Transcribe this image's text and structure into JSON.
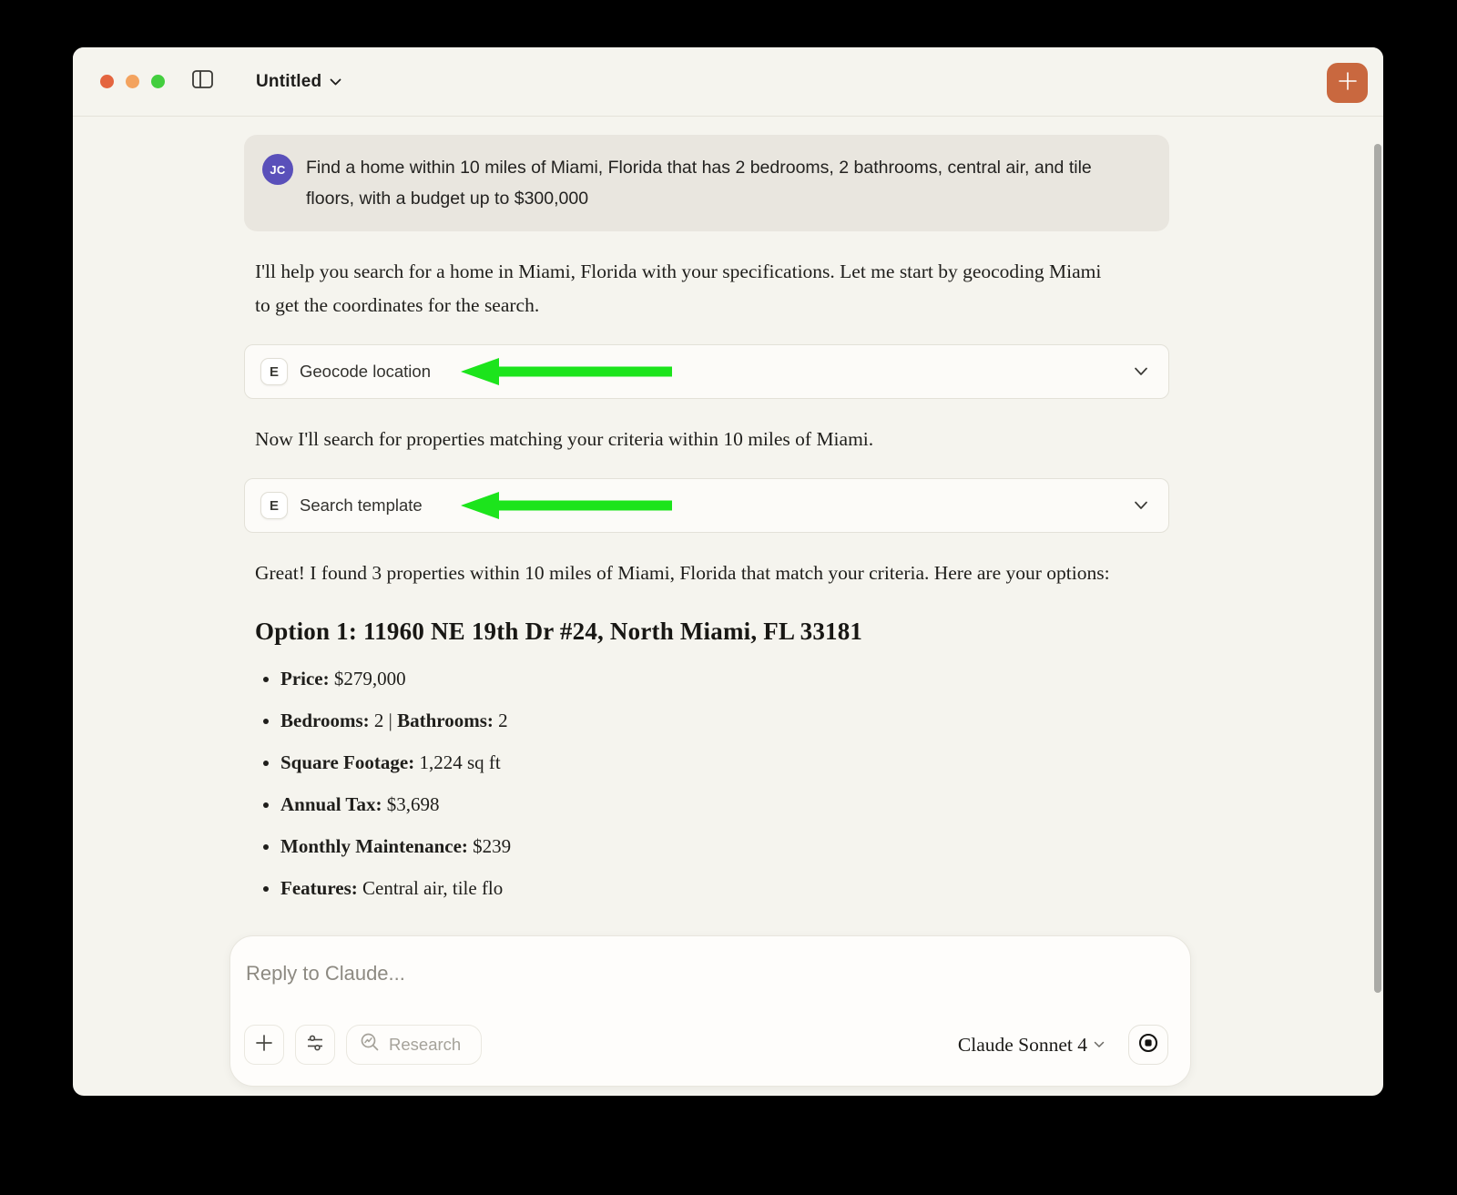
{
  "window": {
    "title": "Untitled",
    "traffic_lights": [
      "#E4653F",
      "#F3A35F",
      "#43CE3E"
    ],
    "new_chat_color": "#C9683F"
  },
  "chat": {
    "user_message": {
      "avatar_initials": "JC",
      "avatar_color": "#5A50BA",
      "text": "Find a home within 10 miles of Miami, Florida that has 2 bedrooms, 2 bathrooms, central air, and tile floors, with a budget up to $300,000"
    },
    "assistant": {
      "para1": "I'll help you search for a home in Miami, Florida with your specifications. Let me start by geocoding Miami to get the coordinates for the search.",
      "tools": [
        {
          "badge": "E",
          "label": "Geocode location"
        },
        {
          "badge": "E",
          "label": "Search template"
        }
      ],
      "para2": "Now I'll search for properties matching your criteria within 10 miles of Miami.",
      "para3": "Great! I found 3 properties within 10 miles of Miami, Florida that match your criteria. Here are your options:",
      "option_heading": "Option 1: 11960 NE 19th Dr #24, North Miami, FL 33181",
      "bullets": [
        {
          "segments": [
            {
              "bold": true,
              "text": "Price:"
            },
            {
              "bold": false,
              "text": " $279,000"
            }
          ]
        },
        {
          "segments": [
            {
              "bold": true,
              "text": "Bedrooms:"
            },
            {
              "bold": false,
              "text": " 2 | "
            },
            {
              "bold": true,
              "text": "Bathrooms:"
            },
            {
              "bold": false,
              "text": " 2"
            }
          ]
        },
        {
          "segments": [
            {
              "bold": true,
              "text": "Square Footage:"
            },
            {
              "bold": false,
              "text": " 1,224 sq ft"
            }
          ]
        },
        {
          "segments": [
            {
              "bold": true,
              "text": "Annual Tax:"
            },
            {
              "bold": false,
              "text": " $3,698"
            }
          ]
        },
        {
          "segments": [
            {
              "bold": true,
              "text": "Monthly Maintenance:"
            },
            {
              "bold": false,
              "text": " $239"
            }
          ]
        },
        {
          "segments": [
            {
              "bold": true,
              "text": "Features:"
            },
            {
              "bold": false,
              "text": " Central air, tile flo"
            }
          ]
        }
      ]
    }
  },
  "composer": {
    "placeholder": "Reply to Claude...",
    "research_label": "Research",
    "model_label": "Claude Sonnet 4"
  },
  "annotations": {
    "arrow_color": "#1CE41C"
  }
}
